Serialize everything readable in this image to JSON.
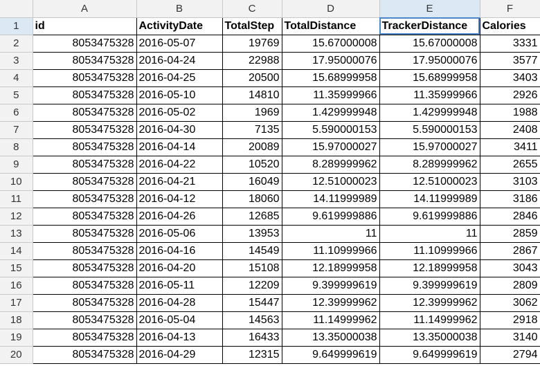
{
  "columns": [
    "A",
    "B",
    "C",
    "D",
    "E",
    "F"
  ],
  "row_numbers": [
    "1",
    "2",
    "3",
    "4",
    "5",
    "6",
    "7",
    "8",
    "9",
    "10",
    "11",
    "12",
    "13",
    "14",
    "15",
    "16",
    "17",
    "18",
    "19",
    "20"
  ],
  "header": [
    "id",
    "ActivityDate",
    "TotalStep",
    "TotalDistance",
    "TrackerDistance",
    "Calories"
  ],
  "rows": [
    [
      "8053475328",
      "2016-05-07",
      "19769",
      "15.67000008",
      "15.67000008",
      "3331"
    ],
    [
      "8053475328",
      "2016-04-24",
      "22988",
      "17.95000076",
      "17.95000076",
      "3577"
    ],
    [
      "8053475328",
      "2016-04-25",
      "20500",
      "15.68999958",
      "15.68999958",
      "3403"
    ],
    [
      "8053475328",
      "2016-05-10",
      "14810",
      "11.35999966",
      "11.35999966",
      "2926"
    ],
    [
      "8053475328",
      "2016-05-02",
      "1969",
      "1.429999948",
      "1.429999948",
      "1988"
    ],
    [
      "8053475328",
      "2016-04-30",
      "7135",
      "5.590000153",
      "5.590000153",
      "2408"
    ],
    [
      "8053475328",
      "2016-04-14",
      "20089",
      "15.97000027",
      "15.97000027",
      "3411"
    ],
    [
      "8053475328",
      "2016-04-22",
      "10520",
      "8.289999962",
      "8.289999962",
      "2655"
    ],
    [
      "8053475328",
      "2016-04-21",
      "16049",
      "12.51000023",
      "12.51000023",
      "3103"
    ],
    [
      "8053475328",
      "2016-04-12",
      "18060",
      "14.11999989",
      "14.11999989",
      "3186"
    ],
    [
      "8053475328",
      "2016-04-26",
      "12685",
      "9.619999886",
      "9.619999886",
      "2846"
    ],
    [
      "8053475328",
      "2016-05-06",
      "13953",
      "11",
      "11",
      "2859"
    ],
    [
      "8053475328",
      "2016-04-16",
      "14549",
      "11.10999966",
      "11.10999966",
      "2867"
    ],
    [
      "8053475328",
      "2016-04-20",
      "15108",
      "12.18999958",
      "12.18999958",
      "3043"
    ],
    [
      "8053475328",
      "2016-05-11",
      "12209",
      "9.399999619",
      "9.399999619",
      "2809"
    ],
    [
      "8053475328",
      "2016-04-28",
      "15447",
      "12.39999962",
      "12.39999962",
      "3062"
    ],
    [
      "8053475328",
      "2016-05-04",
      "14563",
      "11.14999962",
      "11.14999962",
      "2918"
    ],
    [
      "8053475328",
      "2016-04-13",
      "16433",
      "13.35000038",
      "13.35000038",
      "3140"
    ],
    [
      "8053475328",
      "2016-04-29",
      "12315",
      "9.649999619",
      "9.649999619",
      "2794"
    ]
  ],
  "selected_cell": "E1",
  "colors": {
    "selection_border": "#4a86c8",
    "header_bg": "#f2f2f2",
    "selected_header_bg": "#dde8f5"
  }
}
